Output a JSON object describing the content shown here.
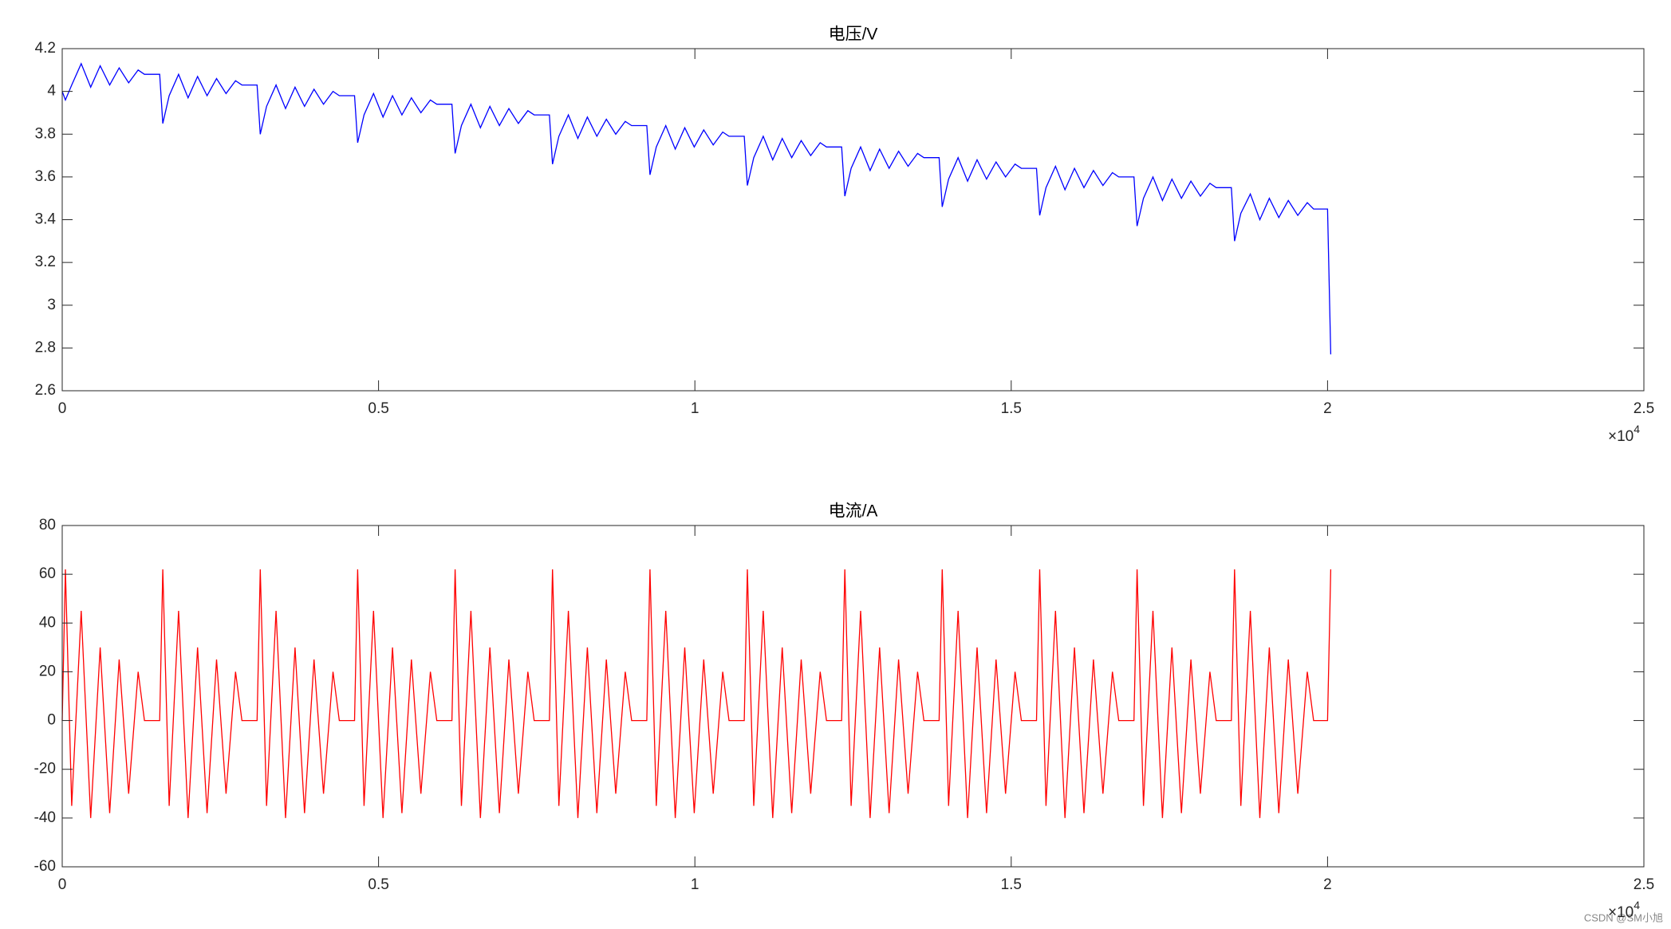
{
  "chart_data": [
    {
      "type": "line",
      "title": "电压/V",
      "color": "#0000ff",
      "x": [
        0,
        50,
        150,
        300,
        450,
        600,
        750,
        900,
        1050,
        1200,
        1300,
        1540,
        1590,
        1690,
        1840,
        1990,
        2140,
        2290,
        2440,
        2590,
        2740,
        2840,
        3080,
        3130,
        3230,
        3380,
        3530,
        3680,
        3830,
        3980,
        4130,
        4280,
        4380,
        4620,
        4670,
        4770,
        4920,
        5070,
        5220,
        5370,
        5520,
        5670,
        5820,
        5920,
        6160,
        6210,
        6310,
        6460,
        6610,
        6760,
        6910,
        7060,
        7210,
        7360,
        7460,
        7700,
        7750,
        7850,
        8000,
        8150,
        8300,
        8450,
        8600,
        8750,
        8900,
        9000,
        9240,
        9290,
        9390,
        9540,
        9690,
        9840,
        9990,
        10140,
        10290,
        10440,
        10540,
        10780,
        10830,
        10930,
        11080,
        11230,
        11380,
        11530,
        11680,
        11830,
        11980,
        12080,
        12320,
        12370,
        12470,
        12620,
        12770,
        12920,
        13070,
        13220,
        13370,
        13520,
        13620,
        13860,
        13910,
        14010,
        14160,
        14310,
        14460,
        14610,
        14760,
        14910,
        15060,
        15160,
        15400,
        15450,
        15550,
        15700,
        15850,
        16000,
        16150,
        16300,
        16450,
        16600,
        16700,
        16940,
        16990,
        17090,
        17240,
        17390,
        17540,
        17690,
        17840,
        17990,
        18140,
        18240,
        18480,
        18530,
        18630,
        18780,
        18930,
        19080,
        19230,
        19380,
        19530,
        19680,
        19780,
        20000,
        20050
      ],
      "values": [
        4.0,
        3.96,
        4.03,
        4.13,
        4.02,
        4.12,
        4.03,
        4.11,
        4.04,
        4.1,
        4.08,
        4.08,
        3.85,
        3.98,
        4.08,
        3.97,
        4.07,
        3.98,
        4.06,
        3.99,
        4.05,
        4.03,
        4.03,
        3.8,
        3.93,
        4.03,
        3.92,
        4.02,
        3.93,
        4.01,
        3.94,
        4.0,
        3.98,
        3.98,
        3.76,
        3.89,
        3.99,
        3.88,
        3.98,
        3.89,
        3.97,
        3.9,
        3.96,
        3.94,
        3.94,
        3.71,
        3.84,
        3.94,
        3.83,
        3.93,
        3.84,
        3.92,
        3.85,
        3.91,
        3.89,
        3.89,
        3.66,
        3.79,
        3.89,
        3.78,
        3.88,
        3.79,
        3.87,
        3.8,
        3.86,
        3.84,
        3.84,
        3.61,
        3.74,
        3.84,
        3.73,
        3.83,
        3.74,
        3.82,
        3.75,
        3.81,
        3.79,
        3.79,
        3.56,
        3.69,
        3.79,
        3.68,
        3.78,
        3.69,
        3.77,
        3.7,
        3.76,
        3.74,
        3.74,
        3.51,
        3.64,
        3.74,
        3.63,
        3.73,
        3.64,
        3.72,
        3.65,
        3.71,
        3.69,
        3.69,
        3.46,
        3.59,
        3.69,
        3.58,
        3.68,
        3.59,
        3.67,
        3.6,
        3.66,
        3.64,
        3.64,
        3.42,
        3.55,
        3.65,
        3.54,
        3.64,
        3.55,
        3.63,
        3.56,
        3.62,
        3.6,
        3.6,
        3.37,
        3.5,
        3.6,
        3.49,
        3.59,
        3.5,
        3.58,
        3.51,
        3.57,
        3.55,
        3.55,
        3.3,
        3.43,
        3.52,
        3.4,
        3.5,
        3.41,
        3.49,
        3.42,
        3.48,
        3.45,
        3.45,
        2.77
      ],
      "xlim": [
        0,
        25000
      ],
      "xticks": [
        0,
        {
          "value": 5000,
          "label": "0.5"
        },
        {
          "value": 10000,
          "label": "1"
        },
        {
          "value": 15000,
          "label": "1.5"
        },
        {
          "value": 20000,
          "label": "2"
        },
        {
          "value": 25000,
          "label": "2.5"
        }
      ],
      "x_multiplier": {
        "base": "×10",
        "exponent": "4"
      },
      "ylim": [
        2.6,
        4.2
      ],
      "yticks": [
        2.6,
        2.8,
        3,
        3.2,
        3.4,
        3.6,
        3.8,
        4,
        4.2
      ],
      "grid": false
    },
    {
      "type": "line",
      "title": "电流/A",
      "color": "#ff0000",
      "x": [
        0,
        50,
        150,
        300,
        450,
        600,
        750,
        900,
        1050,
        1200,
        1300,
        1540,
        1590,
        1690,
        1840,
        1990,
        2140,
        2290,
        2440,
        2590,
        2740,
        2840,
        3080,
        3130,
        3230,
        3380,
        3530,
        3680,
        3830,
        3980,
        4130,
        4280,
        4380,
        4620,
        4670,
        4770,
        4920,
        5070,
        5220,
        5370,
        5520,
        5670,
        5820,
        5920,
        6160,
        6210,
        6310,
        6460,
        6610,
        6760,
        6910,
        7060,
        7210,
        7360,
        7460,
        7700,
        7750,
        7850,
        8000,
        8150,
        8300,
        8450,
        8600,
        8750,
        8900,
        9000,
        9240,
        9290,
        9390,
        9540,
        9690,
        9840,
        9990,
        10140,
        10290,
        10440,
        10540,
        10780,
        10830,
        10930,
        11080,
        11230,
        11380,
        11530,
        11680,
        11830,
        11980,
        12080,
        12320,
        12370,
        12470,
        12620,
        12770,
        12920,
        13070,
        13220,
        13370,
        13520,
        13620,
        13860,
        13910,
        14010,
        14160,
        14310,
        14460,
        14610,
        14760,
        14910,
        15060,
        15160,
        15400,
        15450,
        15550,
        15700,
        15850,
        16000,
        16150,
        16300,
        16450,
        16600,
        16700,
        16940,
        16990,
        17090,
        17240,
        17390,
        17540,
        17690,
        17840,
        17990,
        18140,
        18240,
        18480,
        18530,
        18630,
        18780,
        18930,
        19080,
        19230,
        19380,
        19530,
        19680,
        19780,
        20000,
        20050
      ],
      "values": [
        0,
        62,
        -35,
        45,
        -40,
        30,
        -38,
        25,
        -30,
        20,
        0,
        0,
        62,
        -35,
        45,
        -40,
        30,
        -38,
        25,
        -30,
        20,
        0,
        0,
        62,
        -35,
        45,
        -40,
        30,
        -38,
        25,
        -30,
        20,
        0,
        0,
        62,
        -35,
        45,
        -40,
        30,
        -38,
        25,
        -30,
        20,
        0,
        0,
        62,
        -35,
        45,
        -40,
        30,
        -38,
        25,
        -30,
        20,
        0,
        0,
        62,
        -35,
        45,
        -40,
        30,
        -38,
        25,
        -30,
        20,
        0,
        0,
        62,
        -35,
        45,
        -40,
        30,
        -38,
        25,
        -30,
        20,
        0,
        0,
        62,
        -35,
        45,
        -40,
        30,
        -38,
        25,
        -30,
        20,
        0,
        0,
        62,
        -35,
        45,
        -40,
        30,
        -38,
        25,
        -30,
        20,
        0,
        0,
        62,
        -35,
        45,
        -40,
        30,
        -38,
        25,
        -30,
        20,
        0,
        0,
        62,
        -35,
        45,
        -40,
        30,
        -38,
        25,
        -30,
        20,
        0,
        0,
        62,
        -35,
        45,
        -40,
        30,
        -38,
        25,
        -30,
        20,
        0,
        0,
        62,
        -35,
        45,
        -40,
        30,
        -38,
        25,
        -30,
        20,
        0,
        0,
        62
      ],
      "xlim": [
        0,
        25000
      ],
      "xticks": [
        0,
        {
          "value": 5000,
          "label": "0.5"
        },
        {
          "value": 10000,
          "label": "1"
        },
        {
          "value": 15000,
          "label": "1.5"
        },
        {
          "value": 20000,
          "label": "2"
        },
        {
          "value": 25000,
          "label": "2.5"
        }
      ],
      "x_multiplier": {
        "base": "×10",
        "exponent": "4"
      },
      "ylim": [
        -60,
        80
      ],
      "yticks": [
        -60,
        -40,
        -20,
        0,
        20,
        40,
        60,
        80
      ],
      "grid": false
    }
  ],
  "watermark": "CSDN @SM小旭"
}
